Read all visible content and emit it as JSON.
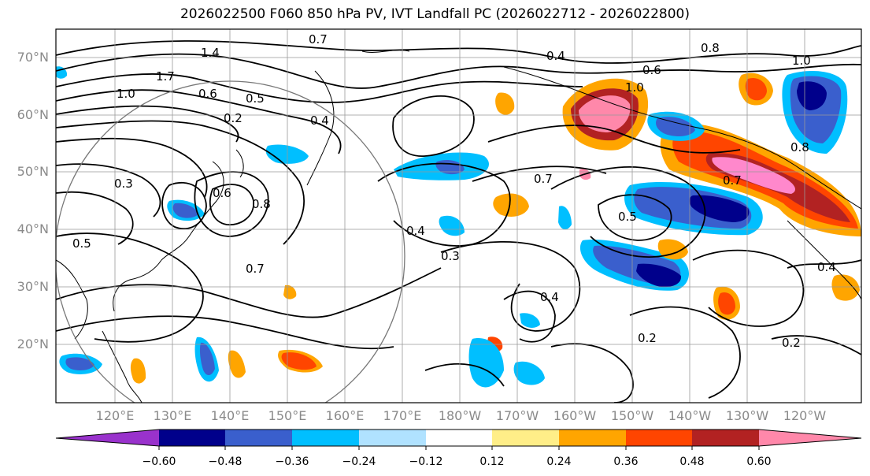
{
  "title": "2026022500 F060 850 hPa PV, IVT Landfall PC (2026022712 - 2026022800)",
  "lat_labels": [
    "70°N",
    "60°N",
    "50°N",
    "40°N",
    "30°N",
    "20°N"
  ],
  "lon_labels": [
    "120°E",
    "130°E",
    "140°E",
    "150°E",
    "160°E",
    "170°E",
    "180°W",
    "170°W",
    "160°W",
    "150°W",
    "140°W",
    "130°W",
    "120°W"
  ],
  "contour_labels": [
    "0.7",
    "1.4",
    "1.0",
    "1.7",
    "0.6",
    "0.5",
    "0.2",
    "0.4",
    "0.3",
    "0.5",
    "0.6",
    "0.8",
    "0.7",
    "0.4",
    "0.3",
    "0.7",
    "0.6",
    "1.0",
    "0.4",
    "0.8",
    "0.7",
    "0.5",
    "0.4",
    "0.2",
    "0.2",
    "0.4",
    "1.0",
    "0.8"
  ],
  "colorbar": {
    "ticks": [
      "−0.60",
      "−0.48",
      "−0.36",
      "−0.24",
      "−0.12",
      "0.12",
      "0.24",
      "0.36",
      "0.48",
      "0.60"
    ],
    "colors": [
      "#9932cc",
      "#00008b",
      "#3a5fcd",
      "#00bfff",
      "#b0e2ff",
      "#ffffff",
      "#ffee88",
      "#ffa500",
      "#ff4500",
      "#b22222",
      "#ff88aa",
      "#ff88cc"
    ]
  }
}
